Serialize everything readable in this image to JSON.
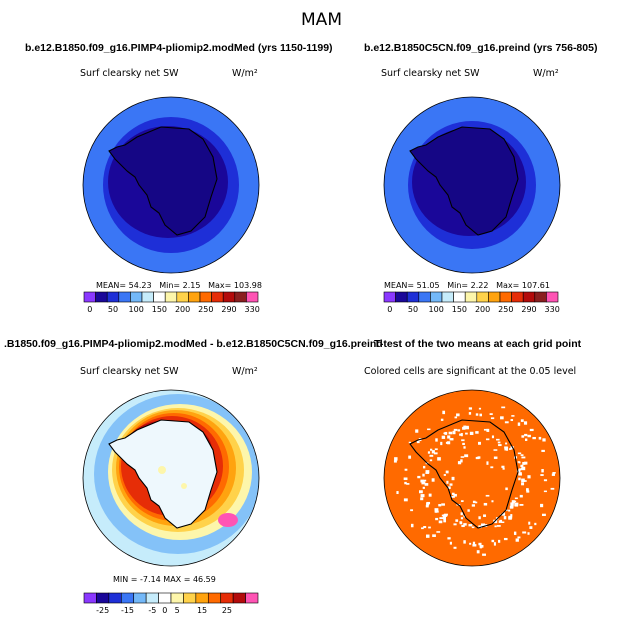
{
  "figure": {
    "season": "MAM"
  },
  "chart_data": [
    {
      "type": "heatmap",
      "title": "b.e12.B1850.f09_g16.PIMP4-pliomip2.modMed (yrs 1150-1199)",
      "left_string": "Surf clearsky net SW",
      "units": "W/m²",
      "projection": "south polar stereographic",
      "stats": {
        "mean_label": "MEAN=",
        "mean": "54.23",
        "min_label": "Min=",
        "min": "2.15",
        "max_label": "Max=",
        "max": "103.98"
      },
      "colorbar": {
        "levels": [
          0,
          25,
          50,
          75,
          100,
          125,
          150,
          175,
          200,
          225,
          250,
          270,
          290,
          310,
          330
        ],
        "tick_labels": [
          "0",
          "50",
          "100",
          "150",
          "200",
          "250",
          "290",
          "330"
        ],
        "colors": [
          "#8b38ff",
          "#1a0799",
          "#1e2fd7",
          "#3a76f5",
          "#73b8f8",
          "#c6ecfb",
          "#ffffff",
          "#fdf6ab",
          "#ffd24a",
          "#ffa30f",
          "#ff6a00",
          "#e62d07",
          "#b30b0b",
          "#8a1f1f",
          "#ff54b4"
        ]
      },
      "regions": [
        {
          "region": "outer ocean",
          "value_range": [
            25,
            50
          ]
        },
        {
          "region": "mid ring",
          "value_range": [
            0,
            25
          ]
        },
        {
          "region": "antarctic continent",
          "value_range": [
            0,
            25
          ]
        }
      ]
    },
    {
      "type": "heatmap",
      "title": "b.e12.B1850C5CN.f09_g16.preind (yrs 756-805)",
      "left_string": "Surf clearsky net SW",
      "units": "W/m²",
      "projection": "south polar stereographic",
      "stats": {
        "mean_label": "MEAN=",
        "mean": "51.05",
        "min_label": "Min=",
        "min": "2.22",
        "max_label": "Max=",
        "max": "107.61"
      },
      "colorbar": {
        "levels": [
          0,
          25,
          50,
          75,
          100,
          125,
          150,
          175,
          200,
          225,
          250,
          270,
          290,
          310,
          330
        ],
        "tick_labels": [
          "0",
          "50",
          "100",
          "150",
          "200",
          "250",
          "290",
          "330"
        ],
        "colors": [
          "#8b38ff",
          "#1a0799",
          "#1e2fd7",
          "#3a76f5",
          "#73b8f8",
          "#c6ecfb",
          "#ffffff",
          "#fdf6ab",
          "#ffd24a",
          "#ffa30f",
          "#ff6a00",
          "#e62d07",
          "#b30b0b",
          "#8a1f1f",
          "#ff54b4"
        ]
      },
      "regions": [
        {
          "region": "outer ocean",
          "value_range": [
            25,
            50
          ]
        },
        {
          "region": "mid ring",
          "value_range": [
            0,
            25
          ]
        },
        {
          "region": "antarctic continent",
          "value_range": [
            0,
            25
          ]
        }
      ]
    },
    {
      "type": "heatmap",
      "title": ".B1850.f09_g16.PIMP4-pliomip2.modMed - b.e12.B1850C5CN.f09_g16.preind",
      "left_string": "Surf clearsky net SW",
      "units": "W/m²",
      "projection": "south polar stereographic",
      "stats": {
        "min_label": "MIN =",
        "min": "-7.14",
        "max_label": "MAX =",
        "max": "46.59"
      },
      "colorbar": {
        "levels": [
          -30,
          -25,
          -20,
          -15,
          -10,
          -5,
          0,
          5,
          10,
          15,
          20,
          25,
          30
        ],
        "tick_labels": [
          "-25",
          "-15",
          "-5",
          "0",
          "5",
          "15",
          "25"
        ],
        "colors": [
          "#8b38ff",
          "#1a0799",
          "#1e2fd7",
          "#3a76f5",
          "#73b8f8",
          "#c6ecfb",
          "#ffffff",
          "#fdf6ab",
          "#ffd24a",
          "#ffa30f",
          "#ff6a00",
          "#e62d07",
          "#b30b0b",
          "#ff54b4"
        ]
      },
      "regions": [
        {
          "region": "outer ocean",
          "value_range": [
            0,
            5
          ]
        },
        {
          "region": "sea-ice margin",
          "value_range": [
            5,
            30
          ]
        },
        {
          "region": "antarctic continent",
          "value_range": [
            -5,
            5
          ]
        }
      ]
    },
    {
      "type": "heatmap",
      "title": "T-test of the two means at each grid point",
      "left_string": "Colored cells are significant at the 0.05 level",
      "projection": "south polar stereographic",
      "significance_level": 0.05
    }
  ]
}
